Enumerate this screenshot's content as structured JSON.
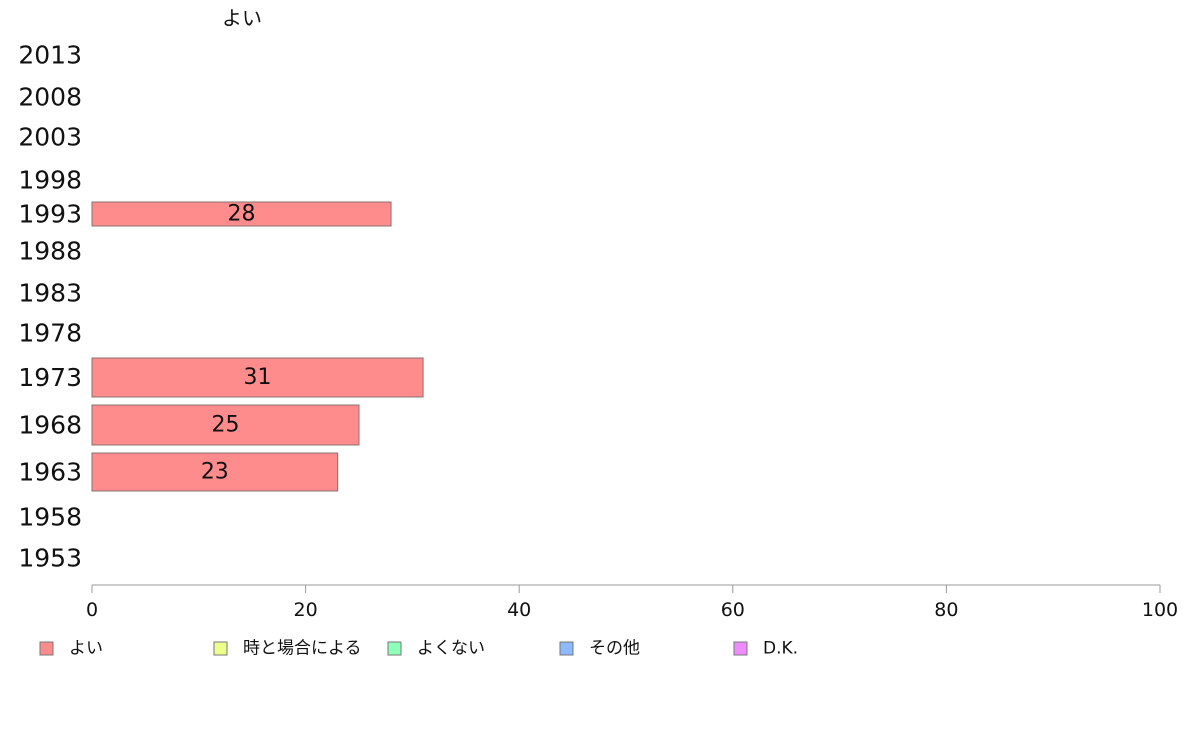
{
  "chart_data": {
    "type": "bar",
    "orientation": "horizontal",
    "title": "よい",
    "categories": [
      "2013",
      "2008",
      "2003",
      "1998",
      "1993",
      "1988",
      "1983",
      "1978",
      "1973",
      "1968",
      "1963",
      "1958",
      "1953"
    ],
    "series": [
      {
        "name": "よい",
        "color": "#ff8c8c",
        "values": [
          null,
          null,
          null,
          null,
          28,
          null,
          null,
          null,
          31,
          25,
          23,
          null,
          null
        ]
      }
    ],
    "xlim": [
      0,
      100
    ],
    "xticks": [
      0,
      20,
      40,
      60,
      80,
      100
    ],
    "grid": false,
    "legend_position": "bottom-left",
    "legend": [
      {
        "label": "よい",
        "color": "#ff8c8c"
      },
      {
        "label": "時と場合による",
        "color": "#eeff8c"
      },
      {
        "label": "よくない",
        "color": "#8cffb9"
      },
      {
        "label": "その他",
        "color": "#8cb9ff"
      },
      {
        "label": "D.K.",
        "color": "#ee8cff"
      }
    ]
  }
}
